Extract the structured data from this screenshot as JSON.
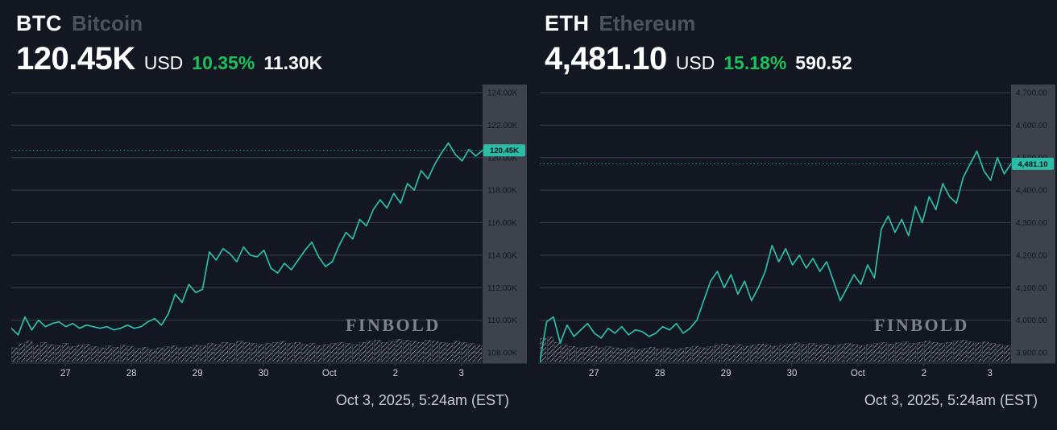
{
  "colors": {
    "background": "#131722",
    "accent": "#2cbda6",
    "green": "#1fc05c",
    "muted": "#4d525d",
    "grid": "#3a3e48",
    "axis_bg": "#3e424c",
    "axis_text": "#14171e",
    "x_label": "#cdd0d8",
    "volume": "#a9adb6",
    "watermark": "#8a8e96",
    "badge_text": "#0c1118",
    "timestamp": "#c9cdd5"
  },
  "charts": [
    {
      "symbol": "BTC",
      "name": "Bitcoin",
      "price": "120.45K",
      "currency": "USD",
      "change_percent": "10.35%",
      "change_value": "11.30K",
      "price_label": "120.45K",
      "watermark": "FINBOLD",
      "timestamp": "Oct 3, 2025, 5:24am (EST)",
      "chart_data": {
        "type": "line",
        "title": "BTC Bitcoin price",
        "y_unit": "thousand USD",
        "ylim": [
          108,
          124
        ],
        "current_value": 120.45,
        "y_ticks": [
          "124.00K",
          "122.00K",
          "120.00K",
          "118.00K",
          "116.00K",
          "114.00K",
          "112.00K",
          "110.00K",
          "108.00K"
        ],
        "x_ticks": [
          "27",
          "28",
          "29",
          "30",
          "Oct",
          "2",
          "3"
        ],
        "values": [
          109.5,
          109.1,
          110.2,
          109.4,
          110.0,
          109.6,
          109.8,
          109.9,
          109.6,
          109.8,
          109.5,
          109.7,
          109.6,
          109.5,
          109.6,
          109.4,
          109.5,
          109.7,
          109.5,
          109.6,
          109.9,
          110.1,
          109.7,
          110.4,
          111.6,
          111.1,
          112.2,
          111.7,
          111.9,
          114.2,
          113.7,
          114.4,
          114.1,
          113.6,
          114.5,
          114.0,
          113.9,
          114.3,
          113.2,
          112.9,
          113.5,
          113.1,
          113.7,
          114.3,
          114.8,
          113.9,
          113.3,
          113.6,
          114.6,
          115.4,
          115.0,
          116.2,
          115.8,
          116.8,
          117.4,
          116.9,
          117.8,
          117.2,
          118.4,
          118.0,
          119.2,
          118.7,
          119.6,
          120.3,
          120.9,
          120.2,
          119.8,
          120.5,
          120.1,
          120.45
        ],
        "volume_relative": [
          0.5,
          0.65,
          0.75,
          0.6,
          0.7,
          0.62,
          0.58,
          0.66,
          0.54,
          0.6,
          0.63,
          0.55,
          0.5,
          0.58,
          0.52,
          0.6,
          0.56,
          0.48,
          0.52,
          0.44,
          0.5,
          0.54,
          0.58,
          0.5,
          0.53,
          0.6,
          0.57,
          0.66,
          0.62,
          0.7,
          0.66,
          0.74,
          0.7,
          0.66,
          0.62,
          0.66,
          0.7,
          0.74,
          0.66,
          0.7,
          0.62,
          0.66,
          0.58,
          0.62,
          0.66,
          0.7,
          0.66,
          0.62,
          0.7,
          0.74,
          0.78,
          0.7,
          0.74,
          0.82,
          0.78,
          0.74,
          0.7,
          0.78,
          0.74,
          0.7,
          0.66,
          0.74,
          0.7,
          0.66,
          0.6
        ]
      }
    },
    {
      "symbol": "ETH",
      "name": "Ethereum",
      "price": "4,481.10",
      "currency": "USD",
      "change_percent": "15.18%",
      "change_value": "590.52",
      "price_label": "4,481.10",
      "watermark": "FINBOLD",
      "timestamp": "Oct 3, 2025, 5:24am (EST)",
      "chart_data": {
        "type": "line",
        "title": "ETH Ethereum price",
        "y_unit": "USD",
        "ylim": [
          3900,
          4700
        ],
        "current_value": 4481.1,
        "y_ticks": [
          "4,700.00",
          "4,600.00",
          "4,500.00",
          "4,400.00",
          "4,300.00",
          "4,200.00",
          "4,100.00",
          "4,000.00",
          "3,900.00"
        ],
        "x_ticks": [
          "27",
          "28",
          "29",
          "30",
          "Oct",
          "2",
          "3"
        ],
        "values": [
          3870,
          3995,
          4010,
          3930,
          3985,
          3950,
          3970,
          3990,
          3960,
          3945,
          3975,
          3960,
          3980,
          3955,
          3970,
          3965,
          3950,
          3960,
          3980,
          3970,
          3990,
          3960,
          3975,
          4000,
          4060,
          4120,
          4150,
          4100,
          4140,
          4080,
          4120,
          4060,
          4100,
          4150,
          4230,
          4180,
          4220,
          4170,
          4200,
          4160,
          4190,
          4150,
          4180,
          4120,
          4060,
          4100,
          4140,
          4110,
          4170,
          4130,
          4280,
          4320,
          4270,
          4310,
          4260,
          4350,
          4300,
          4380,
          4340,
          4420,
          4380,
          4360,
          4440,
          4480,
          4520,
          4460,
          4430,
          4500,
          4450,
          4481.1
        ],
        "volume_relative": [
          0.85,
          0.9,
          0.7,
          0.6,
          0.55,
          0.5,
          0.52,
          0.56,
          0.5,
          0.54,
          0.5,
          0.46,
          0.5,
          0.44,
          0.48,
          0.52,
          0.46,
          0.5,
          0.44,
          0.48,
          0.52,
          0.56,
          0.5,
          0.54,
          0.6,
          0.64,
          0.58,
          0.62,
          0.56,
          0.6,
          0.64,
          0.6,
          0.56,
          0.6,
          0.64,
          0.68,
          0.62,
          0.66,
          0.6,
          0.64,
          0.58,
          0.62,
          0.66,
          0.62,
          0.58,
          0.62,
          0.66,
          0.7,
          0.64,
          0.68,
          0.72,
          0.66,
          0.7,
          0.74,
          0.7,
          0.66,
          0.7,
          0.74,
          0.78,
          0.72,
          0.68,
          0.72,
          0.66,
          0.62,
          0.58
        ]
      }
    }
  ]
}
